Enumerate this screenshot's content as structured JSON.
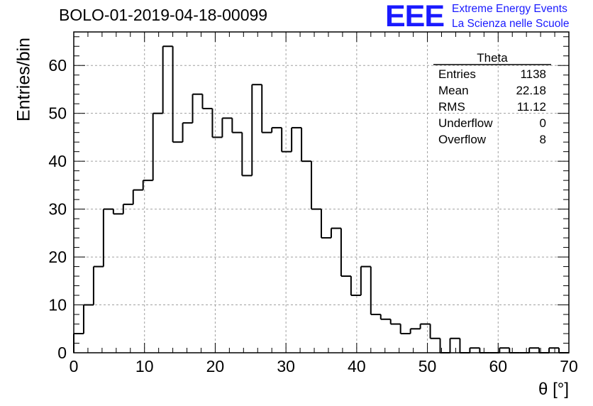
{
  "header": {
    "title": "BOLO-01-2019-04-18-00099",
    "logo_text": "EEE",
    "logo_line1": "Extreme Energy Events",
    "logo_line2": "La Scienza nelle Scuole"
  },
  "stats": {
    "name": "Theta",
    "rows": [
      {
        "label": "Entries",
        "value": "1138"
      },
      {
        "label": "Mean",
        "value": "22.18"
      },
      {
        "label": "RMS",
        "value": "11.12"
      },
      {
        "label": "Underflow",
        "value": "0"
      },
      {
        "label": "Overflow",
        "value": "8"
      }
    ]
  },
  "colors": {
    "line": "#000000",
    "grid": "#a0a0a0",
    "logo": "#1a1aff"
  },
  "chart_data": {
    "type": "histogram",
    "title": "BOLO-01-2019-04-18-00099",
    "xlabel": "θ [°]",
    "ylabel": "Entries/bin",
    "xlim": [
      0,
      70
    ],
    "ylim": [
      0,
      67
    ],
    "bin_width": 1.4,
    "x_ticks": [
      0,
      10,
      20,
      30,
      40,
      50,
      60,
      70
    ],
    "y_ticks": [
      0,
      10,
      20,
      30,
      40,
      50,
      60
    ],
    "grid": true,
    "values": [
      4,
      10,
      18,
      30,
      29,
      31,
      34,
      36,
      50,
      64,
      44,
      48,
      54,
      51,
      45,
      49,
      46,
      37,
      56,
      46,
      47,
      42,
      47,
      40,
      30,
      24,
      26,
      16,
      12,
      18,
      8,
      7,
      6,
      4,
      5,
      6,
      3,
      0,
      3,
      0,
      1,
      0,
      0,
      1,
      0,
      0,
      1,
      0,
      1,
      0
    ]
  }
}
